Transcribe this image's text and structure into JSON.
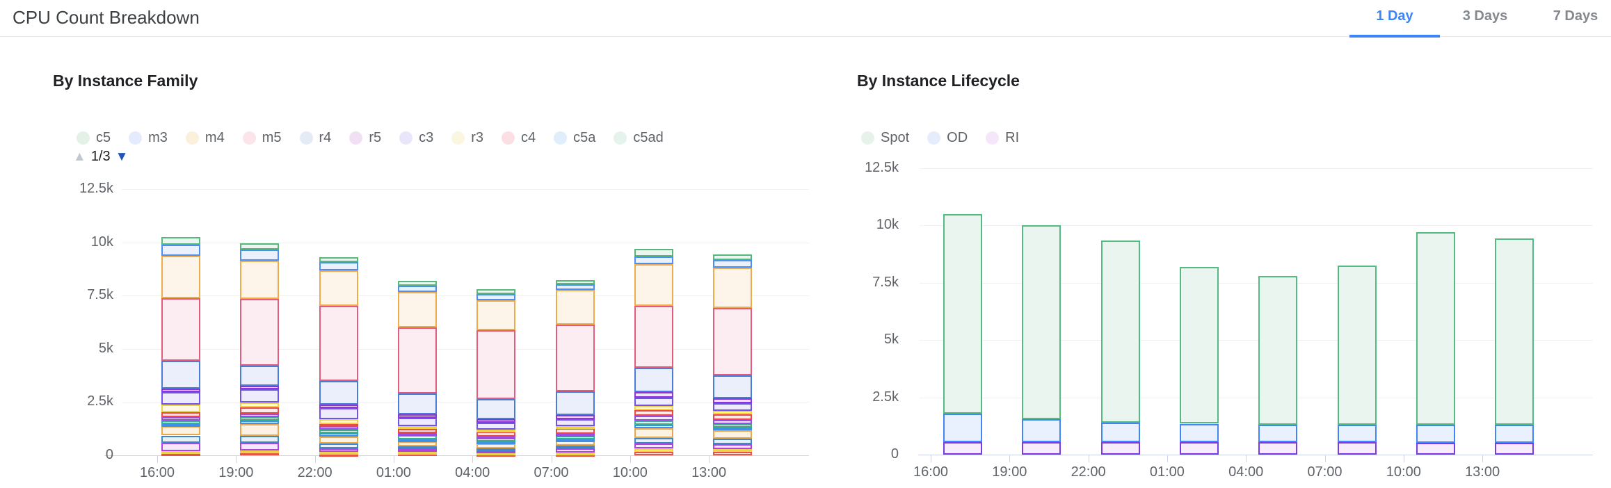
{
  "header": {
    "title": "CPU Count Breakdown",
    "tabs": [
      {
        "label": "1 Day",
        "active": true
      },
      {
        "label": "3 Days",
        "active": false
      },
      {
        "label": "7 Days",
        "active": false
      }
    ],
    "accent_color": "#3d85f5"
  },
  "chart_data": [
    {
      "type": "bar",
      "stacked": true,
      "title": "By Instance Family",
      "categories": [
        "16:00",
        "19:00",
        "22:00",
        "01:00",
        "04:00",
        "07:00",
        "10:00",
        "13:00"
      ],
      "ylim": [
        0,
        12500
      ],
      "y_tick_labels": [
        "0",
        "2.5k",
        "5k",
        "7.5k",
        "10k",
        "12.5k"
      ],
      "grid": true,
      "legend_position": "top",
      "legend_pager": {
        "up_icon": "▲",
        "text": "1/3",
        "down_icon": "▼"
      },
      "legend": [
        {
          "name": "c5",
          "dot": "#e3f1e7"
        },
        {
          "name": "m3",
          "dot": "#e3ebfc"
        },
        {
          "name": "m4",
          "dot": "#faf0dc"
        },
        {
          "name": "m5",
          "dot": "#fbe4ea"
        },
        {
          "name": "r4",
          "dot": "#e4eaf6"
        },
        {
          "name": "r5",
          "dot": "#f3dff5"
        },
        {
          "name": "c3",
          "dot": "#e9e5fb"
        },
        {
          "name": "r3",
          "dot": "#faf6df"
        },
        {
          "name": "c4",
          "dot": "#fbdfe3"
        },
        {
          "name": "c5a",
          "dot": "#dfeefa"
        },
        {
          "name": "c5ad",
          "dot": "#e4f3ec"
        }
      ],
      "series_order": "top-to-bottom",
      "series": [
        {
          "name": "c5",
          "border": "#57b87b",
          "fill": "#eaf6ef",
          "values": [
            350,
            300,
            240,
            240,
            220,
            210,
            330,
            280
          ]
        },
        {
          "name": "m3",
          "border": "#4e8df2",
          "fill": "#eaf1fd",
          "values": [
            520,
            520,
            400,
            300,
            290,
            260,
            390,
            360
          ]
        },
        {
          "name": "m4",
          "border": "#edab49",
          "fill": "#fdf5e9",
          "values": [
            2000,
            1820,
            1660,
            1660,
            1420,
            1610,
            1930,
            1870
          ]
        },
        {
          "name": "m5",
          "border": "#e25c7d",
          "fill": "#fbedf1",
          "values": [
            2950,
            3130,
            3530,
            3080,
            3240,
            3160,
            2910,
            3170
          ]
        },
        {
          "name": "r4",
          "border": "#4a7bd6",
          "fill": "#eaeffb",
          "values": [
            1300,
            950,
            1090,
            980,
            930,
            1110,
            1160,
            1070
          ]
        },
        {
          "name": "r5",
          "border": "#8f35d6",
          "fill": "#f2e6fb",
          "values": [
            170,
            160,
            160,
            180,
            160,
            170,
            250,
            230
          ]
        },
        {
          "name": "c3",
          "border": "#6f52e8",
          "fill": "#edebfc",
          "values": [
            570,
            600,
            540,
            390,
            330,
            330,
            380,
            360
          ]
        },
        {
          "name": "r3",
          "border": "#ecd24b",
          "fill": "#fdf9e4",
          "values": [
            360,
            250,
            220,
            140,
            110,
            110,
            200,
            190
          ]
        },
        {
          "name": "c4",
          "border": "#ea4a45",
          "fill": "#fce9e8",
          "values": [
            250,
            290,
            110,
            190,
            210,
            260,
            270,
            250
          ]
        },
        {
          "name": "c5a",
          "border": "#9b4ae2",
          "fill": "#f1e8fb",
          "values": [
            160,
            170,
            160,
            100,
            90,
            80,
            240,
            180
          ]
        },
        {
          "name": "c5ad",
          "border": "#3aaf8e",
          "fill": "#e8f5f0",
          "values": [
            140,
            160,
            170,
            190,
            140,
            170,
            180,
            160
          ]
        },
        {
          "name": "",
          "border": "#4090e8",
          "fill": "#e7f0fc",
          "values": [
            100,
            150,
            160,
            100,
            90,
            70,
            180,
            150
          ]
        },
        {
          "name": "",
          "border": "#e8a84c",
          "fill": "#fcf2e4",
          "values": [
            450,
            550,
            320,
            220,
            230,
            220,
            430,
            380
          ]
        },
        {
          "name": "",
          "border": "#4485c8",
          "fill": "#e9eff7",
          "values": [
            340,
            320,
            220,
            140,
            120,
            150,
            290,
            270
          ]
        },
        {
          "name": "",
          "border": "#ae43df",
          "fill": "#f6e8fb",
          "values": [
            390,
            380,
            170,
            130,
            100,
            180,
            220,
            230
          ]
        },
        {
          "name": "",
          "border": "#ecd24b",
          "fill": "#fdf9e4",
          "values": [
            90,
            100,
            80,
            60,
            50,
            60,
            160,
            130
          ]
        },
        {
          "name": "",
          "border": "#e85546",
          "fill": "#fcebe6",
          "values": [
            110,
            120,
            80,
            100,
            70,
            80,
            160,
            160
          ]
        }
      ]
    },
    {
      "type": "bar",
      "stacked": true,
      "title": "By Instance Lifecycle",
      "categories": [
        "16:00",
        "19:00",
        "22:00",
        "01:00",
        "04:00",
        "07:00",
        "10:00",
        "13:00"
      ],
      "ylim": [
        0,
        12500
      ],
      "y_tick_labels": [
        "0",
        "2.5k",
        "5k",
        "7.5k",
        "10k",
        "12.5k"
      ],
      "grid": true,
      "legend_position": "top",
      "legend": [
        {
          "name": "Spot",
          "dot": "#e7f2ea"
        },
        {
          "name": "OD",
          "dot": "#e5ecfc"
        },
        {
          "name": "RI",
          "dot": "#f6e6f9"
        }
      ],
      "series_order": "top-to-bottom",
      "series": [
        {
          "name": "Spot",
          "border": "#53ba82",
          "fill": "#e9f5ee",
          "values": [
            8700,
            8450,
            7950,
            6850,
            6500,
            6950,
            8400,
            8150
          ]
        },
        {
          "name": "OD",
          "border": "#4285f4",
          "fill": "#e9f0fe",
          "values": [
            1250,
            1000,
            850,
            800,
            750,
            750,
            780,
            780
          ]
        },
        {
          "name": "RI",
          "border": "#7a3ce2",
          "fill": "#f7ecfc",
          "values": [
            550,
            550,
            550,
            550,
            550,
            550,
            520,
            520
          ]
        }
      ]
    }
  ]
}
